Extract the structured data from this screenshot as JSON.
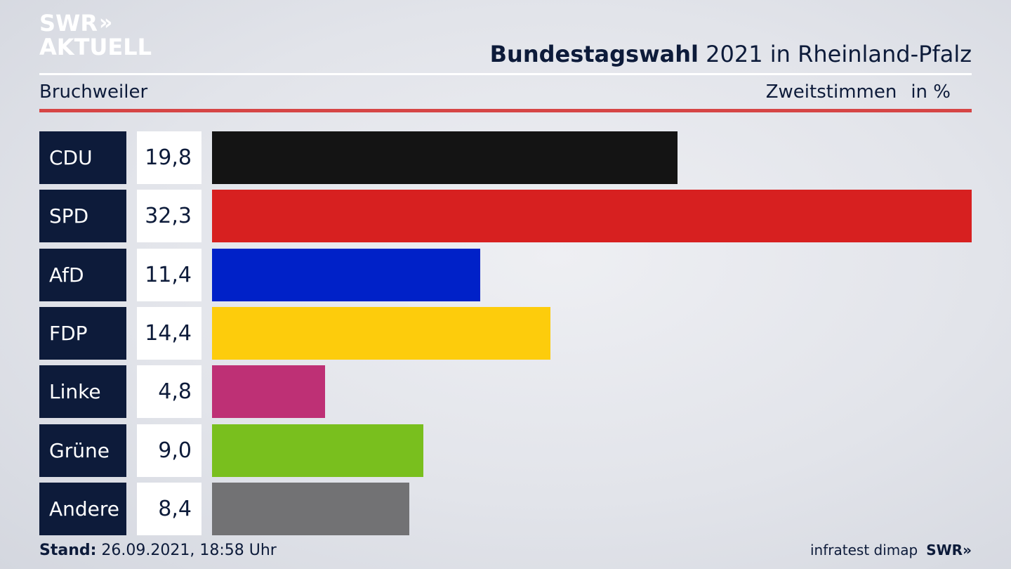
{
  "brand": {
    "logo_line1": "SWR",
    "logo_line2": "AKTUELL",
    "logo_chevrons": "»"
  },
  "header": {
    "title_bold": "Bundestagswahl",
    "title_rest": " 2021 in Rheinland-Pfalz",
    "location": "Bruchweiler",
    "vote_type": "Zweitstimmen",
    "unit": "in %"
  },
  "chart_data": {
    "type": "bar",
    "orientation": "horizontal",
    "title": "Bundestagswahl 2021 in Rheinland-Pfalz",
    "categories": [
      "CDU",
      "SPD",
      "AfD",
      "FDP",
      "Linke",
      "Grüne",
      "Andere"
    ],
    "values": [
      19.8,
      32.3,
      11.4,
      14.4,
      4.8,
      9.0,
      8.4
    ],
    "value_labels": [
      "19,8",
      "32,3",
      "11,4",
      "14,4",
      "4,8",
      "9,0",
      "8,4"
    ],
    "colors": [
      "#141414",
      "#d72020",
      "#0021c8",
      "#fdcc0c",
      "#be3075",
      "#79bf1e",
      "#727274"
    ],
    "xlim": [
      0,
      32.3
    ]
  },
  "footer": {
    "stand_label": "Stand:",
    "stand_value": " 26.09.2021, 18:58 Uhr",
    "source": "infratest dimap",
    "source_logo": "SWR»"
  }
}
